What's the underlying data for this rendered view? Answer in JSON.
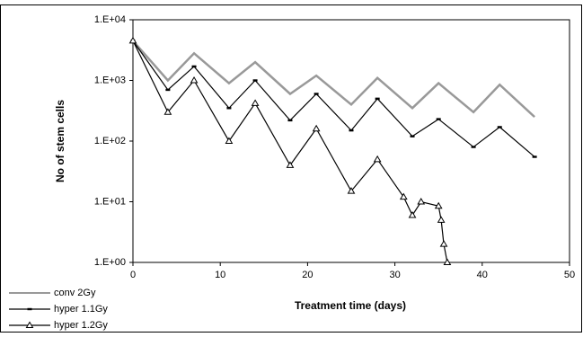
{
  "chart_data": {
    "type": "line",
    "y_label": "No of stem cells",
    "x_label": "Treatment time (days)",
    "log_y": true,
    "ylim": [
      1,
      10000
    ],
    "yticks": [
      {
        "value": 1,
        "label": "1.E+00"
      },
      {
        "value": 10,
        "label": "1.E+01"
      },
      {
        "value": 100,
        "label": "1.E+02"
      },
      {
        "value": 1000,
        "label": "1.E+03"
      },
      {
        "value": 10000,
        "label": "1.E+04"
      }
    ],
    "xlim": [
      0,
      50
    ],
    "xticks": [
      0,
      10,
      20,
      30,
      40,
      50
    ],
    "legend": "bottom-left",
    "series": [
      {
        "name": "conv 2Gy",
        "color": "#999999",
        "marker": "none",
        "x": [
          0,
          4,
          7,
          11,
          14,
          18,
          21,
          25,
          28,
          32,
          35,
          39,
          42,
          46
        ],
        "values": [
          4500,
          1000,
          2800,
          900,
          2000,
          600,
          1200,
          400,
          1100,
          350,
          900,
          300,
          850,
          250
        ]
      },
      {
        "name": "hyper 1.1Gy",
        "color": "#000000",
        "marker": "dash",
        "x": [
          0,
          4,
          7,
          11,
          14,
          18,
          21,
          25,
          28,
          32,
          35,
          39,
          42,
          46
        ],
        "values": [
          4500,
          700,
          1700,
          350,
          1000,
          220,
          600,
          150,
          500,
          120,
          230,
          80,
          170,
          55
        ]
      },
      {
        "name": "hyper 1.2Gy",
        "color": "#000000",
        "marker": "triangle",
        "x": [
          0,
          4,
          7,
          11,
          14,
          18,
          21,
          25,
          28,
          31,
          32,
          33,
          35,
          35.3,
          35.6,
          36
        ],
        "values": [
          4500,
          300,
          1000,
          100,
          420,
          40,
          160,
          15,
          50,
          12,
          6,
          10,
          8.5,
          5,
          2,
          1
        ]
      }
    ]
  }
}
